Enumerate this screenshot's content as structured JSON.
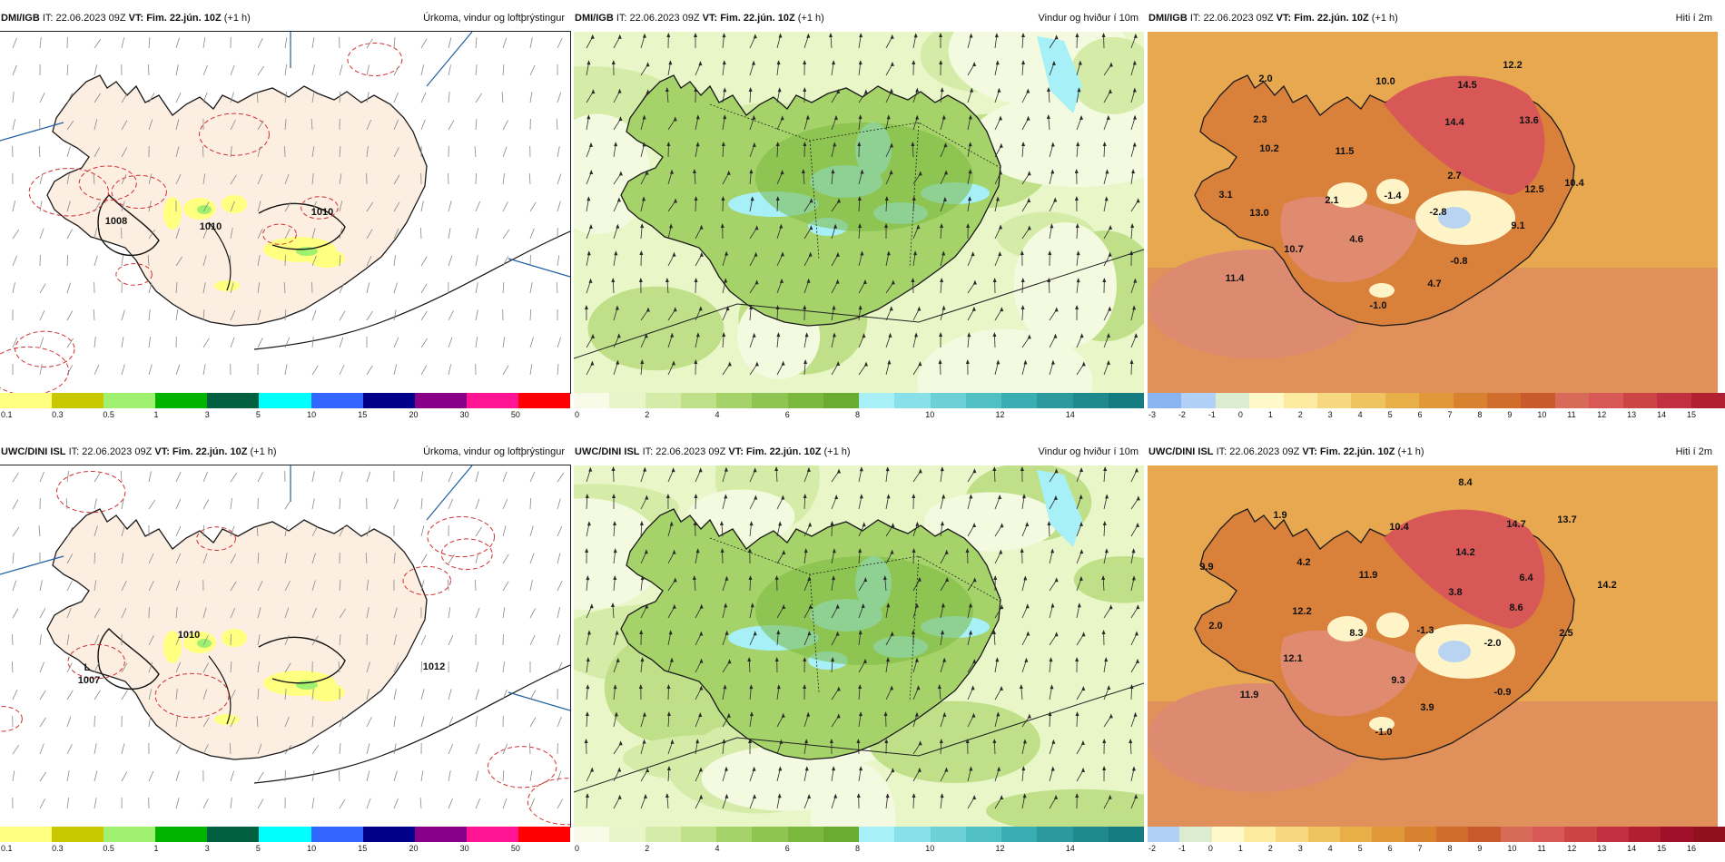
{
  "panels": [
    {
      "id": "p1",
      "source": "DMI/IGB",
      "it_label": "IT: 22.06.2023 09Z",
      "vt_label": "VT: Fim. 22.jún. 10Z",
      "lead": "(+1 h)",
      "title": "Úrkoma, vindur og loftþrýstingur",
      "map_type": "precip",
      "colorbar": {
        "colors": [
          "#ffff80",
          "#c8c800",
          "#a0f070",
          "#00b400",
          "#006040",
          "#00ffff",
          "#3366ff",
          "#000088",
          "#880088",
          "#ff1493",
          "#ff0000"
        ],
        "ticks": [
          "0.1",
          "0.3",
          "0.5",
          "1",
          "3",
          "5",
          "10",
          "15",
          "20",
          "30",
          "50"
        ]
      },
      "map_labels": [
        {
          "text": "1008"
        },
        {
          "text": "1010"
        },
        {
          "text": "1010"
        }
      ]
    },
    {
      "id": "p2",
      "source": "DMI/IGB",
      "it_label": "IT: 22.06.2023 09Z",
      "vt_label": "VT: Fim. 22.jún. 10Z",
      "lead": "(+1 h)",
      "title": "Vindur og hviður í 10m",
      "map_type": "wind",
      "colorbar": {
        "colors": [
          "#f8fbe8",
          "#e8f5c8",
          "#d5eca8",
          "#bfe088",
          "#a6d26a",
          "#8dc452",
          "#7ab83e",
          "#6aac30",
          "#a8f0f8",
          "#88e0e8",
          "#6cd0d6",
          "#50c0c4",
          "#38aeb2",
          "#2a9a9e",
          "#1e8a8e",
          "#147c80"
        ],
        "ticks": [
          "0",
          "2",
          "4",
          "6",
          "8",
          "10",
          "12",
          "14"
        ]
      },
      "map_labels": []
    },
    {
      "id": "p3",
      "source": "DMI/IGB",
      "it_label": "IT: 22.06.2023 09Z",
      "vt_label": "VT: Fim. 22.jún. 10Z",
      "lead": "(+1 h)",
      "title": "Hiti í 2m",
      "map_type": "temp",
      "colorbar": {
        "colors": [
          "#8ab4f0",
          "#b0d0f8",
          "#dcecd0",
          "#fff8c8",
          "#fbeaa0",
          "#f5d880",
          "#efc460",
          "#e8ae48",
          "#e09838",
          "#d88230",
          "#d06c2c",
          "#c85a2c",
          "#d86a5a",
          "#d85858",
          "#cc4444",
          "#c03040",
          "#b02030"
        ],
        "ticks": [
          "-3",
          "-2",
          "-1",
          "0",
          "1",
          "2",
          "3",
          "4",
          "5",
          "6",
          "7",
          "8",
          "9",
          "10",
          "11",
          "12",
          "13",
          "14",
          "15"
        ]
      },
      "map_labels": [
        {
          "text": "2.0"
        },
        {
          "text": "10.0"
        },
        {
          "text": "14.5"
        },
        {
          "text": "12.2"
        },
        {
          "text": "2.3"
        },
        {
          "text": "14.4"
        },
        {
          "text": "13.6"
        },
        {
          "text": "10.2"
        },
        {
          "text": "11.5"
        },
        {
          "text": "2.7"
        },
        {
          "text": "10.4"
        },
        {
          "text": "12.5"
        },
        {
          "text": "3.1"
        },
        {
          "text": "2.1"
        },
        {
          "text": "-1.4"
        },
        {
          "text": "13.0"
        },
        {
          "text": "-2.8"
        },
        {
          "text": "9.1"
        },
        {
          "text": "4.6"
        },
        {
          "text": "10.7"
        },
        {
          "text": "-0.8"
        },
        {
          "text": "11.4"
        },
        {
          "text": "4.7"
        },
        {
          "text": "-1.0"
        }
      ]
    },
    {
      "id": "p4",
      "source": "UWC/DINI ISL",
      "it_label": "IT: 22.06.2023 09Z",
      "vt_label": "VT: Fim. 22.jún. 10Z",
      "lead": "(+1 h)",
      "title": "Úrkoma, vindur og loftþrýstingur",
      "map_type": "precip",
      "colorbar": {
        "colors": [
          "#ffff80",
          "#c8c800",
          "#a0f070",
          "#00b400",
          "#006040",
          "#00ffff",
          "#3366ff",
          "#000088",
          "#880088",
          "#ff1493",
          "#ff0000"
        ],
        "ticks": [
          "0.1",
          "0.3",
          "0.5",
          "1",
          "3",
          "5",
          "10",
          "15",
          "20",
          "30",
          "50"
        ]
      },
      "map_labels": [
        {
          "text": "L"
        },
        {
          "text": "1007"
        },
        {
          "text": "1010"
        },
        {
          "text": "1012"
        }
      ]
    },
    {
      "id": "p5",
      "source": "UWC/DINI ISL",
      "it_label": "IT: 22.06.2023 09Z",
      "vt_label": "VT: Fim. 22.jún. 10Z",
      "lead": "(+1 h)",
      "title": "Vindur og hviður í 10m",
      "map_type": "wind",
      "colorbar": {
        "colors": [
          "#f8fbe8",
          "#e8f5c8",
          "#d5eca8",
          "#bfe088",
          "#a6d26a",
          "#8dc452",
          "#7ab83e",
          "#6aac30",
          "#a8f0f8",
          "#88e0e8",
          "#6cd0d6",
          "#50c0c4",
          "#38aeb2",
          "#2a9a9e",
          "#1e8a8e",
          "#147c80"
        ],
        "ticks": [
          "0",
          "2",
          "4",
          "6",
          "8",
          "10",
          "12",
          "14"
        ]
      },
      "map_labels": []
    },
    {
      "id": "p6",
      "source": "UWC/DINI ISL",
      "it_label": "IT: 22.06.2023 09Z",
      "vt_label": "VT: Fim. 22.jún. 10Z",
      "lead": "(+1 h)",
      "title": "Hiti í 2m",
      "map_type": "temp",
      "colorbar": {
        "colors": [
          "#b0d0f8",
          "#dcecd0",
          "#fff8c8",
          "#fbeaa0",
          "#f5d880",
          "#efc460",
          "#e8ae48",
          "#e09838",
          "#d88230",
          "#d06c2c",
          "#c85a2c",
          "#d86a5a",
          "#d85858",
          "#cc4444",
          "#c03040",
          "#b02030",
          "#a01028",
          "#901020"
        ],
        "ticks": [
          "-2",
          "-1",
          "0",
          "1",
          "2",
          "3",
          "4",
          "5",
          "6",
          "7",
          "8",
          "9",
          "10",
          "11",
          "12",
          "13",
          "14",
          "15",
          "16"
        ]
      },
      "map_labels": [
        {
          "text": "8.4"
        },
        {
          "text": "1.9"
        },
        {
          "text": "14.7"
        },
        {
          "text": "13.7"
        },
        {
          "text": "10.4"
        },
        {
          "text": "9.9"
        },
        {
          "text": "4.2"
        },
        {
          "text": "14.2"
        },
        {
          "text": "11.9"
        },
        {
          "text": "6.4"
        },
        {
          "text": "14.2"
        },
        {
          "text": "3.8"
        },
        {
          "text": "12.2"
        },
        {
          "text": "8.6"
        },
        {
          "text": "2.0"
        },
        {
          "text": "8.3"
        },
        {
          "text": "-1.3"
        },
        {
          "text": "-2.0"
        },
        {
          "text": "2.5"
        },
        {
          "text": "12.1"
        },
        {
          "text": "9.3"
        },
        {
          "text": "-0.9"
        },
        {
          "text": "11.9"
        },
        {
          "text": "3.9"
        },
        {
          "text": "-1.0"
        }
      ]
    }
  ]
}
